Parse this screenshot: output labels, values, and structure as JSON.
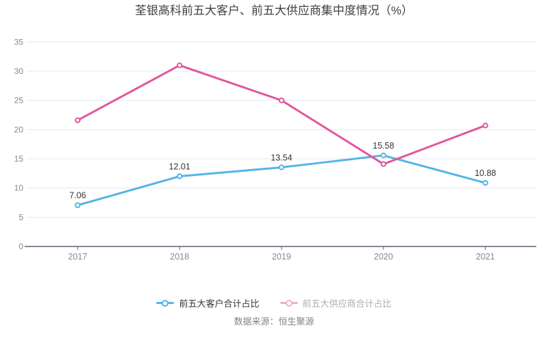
{
  "title": "荃银高科前五大客户、前五大供应商集中度情况（%）",
  "source_note": "数据来源：恒生聚源",
  "colors": {
    "customer_line": "#54B4E8",
    "supplier_line": "#E0569D",
    "grid_line": "#E3E8F2",
    "axis_line": "#5A6070",
    "tick_label": "#85878F",
    "data_label": "#333333",
    "title_text": "#404040",
    "source_text": "#848484"
  },
  "legend": {
    "items": [
      {
        "label": "前五大客户合计占比",
        "icon_color": "#54B4E8",
        "text_color": "#333333"
      },
      {
        "label": "前五大供应商合计占比",
        "icon_color": "#F2ABD1",
        "text_color": "#ABADB3"
      }
    ]
  },
  "chart_data": {
    "type": "line",
    "title": "荃银高科前五大客户、前五大供应商集中度情况（%）",
    "categories": [
      "2017",
      "2018",
      "2019",
      "2020",
      "2021"
    ],
    "series": [
      {
        "name": "前五大客户合计占比",
        "color": "#54B4E8",
        "values": [
          7.06,
          12.01,
          13.54,
          15.58,
          10.88
        ],
        "point_labels": [
          "7.06",
          "12.01",
          "13.54",
          "15.58",
          "10.88"
        ]
      },
      {
        "name": "前五大供应商合计占比",
        "color": "#E0569D",
        "values": [
          21.6,
          31.0,
          25.0,
          14.1,
          20.7
        ],
        "point_labels": []
      }
    ],
    "xlabel": "",
    "ylabel": "",
    "ylim": [
      0,
      35
    ],
    "yticks": [
      0,
      5,
      10,
      15,
      20,
      25,
      30,
      35
    ],
    "grid": true,
    "legend_position": "bottom"
  }
}
